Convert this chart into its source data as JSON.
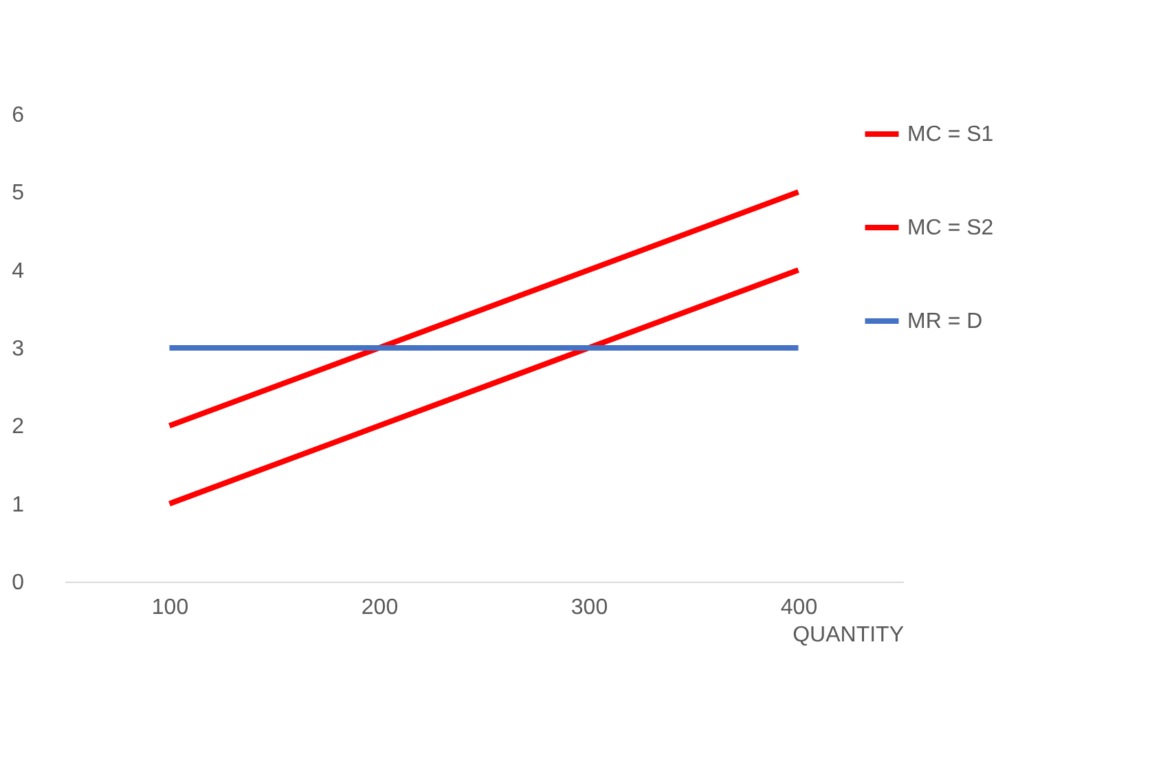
{
  "chart_data": {
    "type": "line",
    "xlabel": "QUANTITY",
    "categories": [
      "100",
      "200",
      "300",
      "400"
    ],
    "series": [
      {
        "name": "MC = S1",
        "color": "#ff0000",
        "values": [
          2,
          3,
          4,
          5
        ]
      },
      {
        "name": "MC = S2",
        "color": "#ff0000",
        "values": [
          1,
          2,
          3,
          4
        ]
      },
      {
        "name": "MR = D",
        "color": "#4472c4",
        "values": [
          3,
          3,
          3,
          3
        ]
      }
    ],
    "ylim": [
      0,
      6
    ],
    "yticks": [
      0,
      1,
      2,
      3,
      4,
      5,
      6
    ],
    "grid": false,
    "legend": "right",
    "marker": "none",
    "line_style": "solid"
  }
}
